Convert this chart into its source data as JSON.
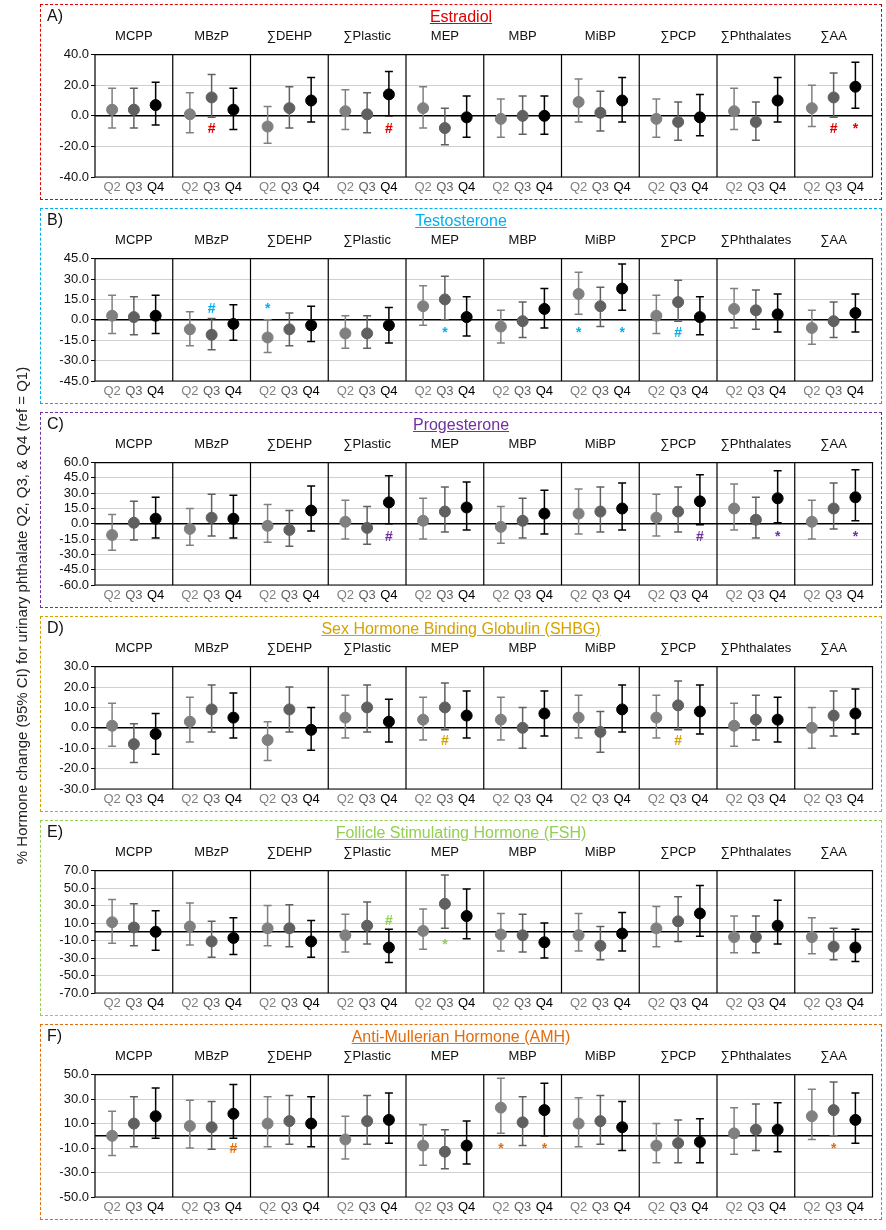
{
  "chart_data": [
    {
      "type": "other",
      "ylabel": "% Hormone change (95% CI) for urinary phthalate Q2, Q3, & Q4 (ref = Q1)"
    },
    {
      "type": "scatter",
      "title": "Estradiol",
      "annotations": [
        "A)"
      ],
      "color": "#e00000",
      "categories": [
        "MCPP",
        "MBzP",
        "∑DEHP",
        "∑Plastic",
        "MEP",
        "MBP",
        "MiBP",
        "∑PCP",
        "∑Phthalates",
        "∑AA"
      ],
      "ylim": [
        -40,
        40
      ],
      "yticks": [
        {
          "value": -40,
          "label": "-40.0"
        },
        {
          "value": -20,
          "label": "-20.0"
        },
        {
          "value": 0,
          "label": "0.0"
        },
        {
          "value": 20,
          "label": "20.0"
        },
        {
          "value": 40,
          "label": "40.0"
        }
      ],
      "grid": true,
      "marker": "circle",
      "legend": false,
      "ref_lines": [
        {
          "axis": "y",
          "value": 0,
          "color": "#000000"
        }
      ],
      "series": [
        {
          "name": "Q2",
          "color": "#808080",
          "values": [
            4,
            1,
            -7,
            3,
            5,
            -2,
            9,
            -2,
            3,
            5
          ],
          "errors": [
            [
              -8,
              18
            ],
            [
              -11,
              15
            ],
            [
              -18,
              6
            ],
            [
              -9,
              17
            ],
            [
              -8,
              19
            ],
            [
              -14,
              11
            ],
            [
              -4,
              24
            ],
            [
              -14,
              11
            ],
            [
              -9,
              18
            ],
            [
              -7,
              20
            ]
          ]
        },
        {
          "name": "Q3",
          "color": "#606060",
          "values": [
            4,
            12,
            5,
            1,
            -8,
            0,
            2,
            -4,
            -4,
            12
          ],
          "errors": [
            [
              -8,
              18
            ],
            [
              -1,
              27
            ],
            [
              -8,
              19
            ],
            [
              -11,
              15
            ],
            [
              -19,
              5
            ],
            [
              -12,
              13
            ],
            [
              -10,
              16
            ],
            [
              -16,
              9
            ],
            [
              -16,
              9
            ],
            [
              -1,
              28
            ]
          ],
          "value_labels": [
            null,
            "#",
            null,
            null,
            null,
            null,
            null,
            null,
            null,
            "#"
          ]
        },
        {
          "name": "Q4",
          "color": "#000000",
          "values": [
            7,
            4,
            10,
            14,
            -1,
            0,
            10,
            -1,
            10,
            19
          ],
          "errors": [
            [
              -6,
              22
            ],
            [
              -9,
              18
            ],
            [
              -4,
              25
            ],
            [
              0,
              29
            ],
            [
              -14,
              13
            ],
            [
              -12,
              13
            ],
            [
              -4,
              25
            ],
            [
              -13,
              14
            ],
            [
              -4,
              25
            ],
            [
              5,
              35
            ]
          ],
          "value_labels": [
            null,
            null,
            null,
            "#",
            null,
            null,
            null,
            null,
            null,
            "*"
          ]
        }
      ]
    },
    {
      "type": "scatter",
      "title": "Testosterone",
      "annotations": [
        "B)"
      ],
      "color": "#00b0f0",
      "categories": [
        "MCPP",
        "MBzP",
        "∑DEHP",
        "∑Plastic",
        "MEP",
        "MBP",
        "MiBP",
        "∑PCP",
        "∑Phthalates",
        "∑AA"
      ],
      "ylim": [
        -45,
        45
      ],
      "yticks": [
        {
          "value": -45,
          "label": "-45.0"
        },
        {
          "value": -30,
          "label": "-30.0"
        },
        {
          "value": -15,
          "label": "-15.0"
        },
        {
          "value": 0,
          "label": "0.0"
        },
        {
          "value": 15,
          "label": "15.0"
        },
        {
          "value": 30,
          "label": "30.0"
        },
        {
          "value": 45,
          "label": "45.0"
        }
      ],
      "grid": true,
      "marker": "circle",
      "legend": false,
      "ref_lines": [
        {
          "axis": "y",
          "value": 0,
          "color": "#000000"
        }
      ],
      "series": [
        {
          "name": "Q2",
          "color": "#808080",
          "values": [
            3,
            -7,
            -13,
            -10,
            10,
            -5,
            19,
            3,
            8,
            -6
          ],
          "errors": [
            [
              -10,
              18
            ],
            [
              -19,
              6
            ],
            [
              -24,
              0
            ],
            [
              -21,
              3
            ],
            [
              -4,
              25
            ],
            [
              -17,
              7
            ],
            [
              4,
              35
            ],
            [
              -10,
              18
            ],
            [
              -6,
              23
            ],
            [
              -18,
              7
            ]
          ],
          "value_labels": [
            null,
            null,
            "*",
            null,
            null,
            null,
            "*",
            null,
            null,
            null
          ]
        },
        {
          "name": "Q3",
          "color": "#606060",
          "values": [
            2,
            -11,
            -7,
            -10,
            15,
            -1,
            10,
            13,
            7,
            -1
          ],
          "errors": [
            [
              -11,
              17
            ],
            [
              -22,
              1
            ],
            [
              -19,
              5
            ],
            [
              -21,
              3
            ],
            [
              0,
              32
            ],
            [
              -13,
              13
            ],
            [
              -5,
              24
            ],
            [
              -1,
              29
            ],
            [
              -7,
              22
            ],
            [
              -13,
              13
            ]
          ],
          "value_labels": [
            null,
            "#",
            null,
            null,
            "*",
            null,
            null,
            "#",
            null,
            null
          ]
        },
        {
          "name": "Q4",
          "color": "#000000",
          "values": [
            3,
            -3,
            -4,
            -4,
            2,
            8,
            23,
            2,
            4,
            5
          ],
          "errors": [
            [
              -10,
              18
            ],
            [
              -15,
              11
            ],
            [
              -16,
              10
            ],
            [
              -17,
              9
            ],
            [
              -12,
              17
            ],
            [
              -6,
              23
            ],
            [
              7,
              41
            ],
            [
              -11,
              17
            ],
            [
              -9,
              19
            ],
            [
              -9,
              19
            ]
          ],
          "value_labels": [
            null,
            null,
            null,
            null,
            null,
            null,
            "*",
            null,
            null,
            null
          ]
        }
      ]
    },
    {
      "type": "scatter",
      "title": "Progesterone",
      "annotations": [
        "C)"
      ],
      "color": "#7030a0",
      "categories": [
        "MCPP",
        "MBzP",
        "∑DEHP",
        "∑Plastic",
        "MEP",
        "MBP",
        "MiBP",
        "∑PCP",
        "∑Phthalates",
        "∑AA"
      ],
      "ylim": [
        -60,
        60
      ],
      "yticks": [
        {
          "value": -60,
          "label": "-60.0"
        },
        {
          "value": -45,
          "label": "-45.0"
        },
        {
          "value": -30,
          "label": "-30.0"
        },
        {
          "value": -15,
          "label": "-15.0"
        },
        {
          "value": 0,
          "label": "0.0"
        },
        {
          "value": 15,
          "label": "15.0"
        },
        {
          "value": 30,
          "label": "30.0"
        },
        {
          "value": 45,
          "label": "45.0"
        },
        {
          "value": 60,
          "label": "60.0"
        }
      ],
      "grid": true,
      "marker": "circle",
      "legend": false,
      "ref_lines": [
        {
          "axis": "y",
          "value": 0,
          "color": "#000000"
        }
      ],
      "series": [
        {
          "name": "Q2",
          "color": "#808080",
          "values": [
            -11,
            -5,
            -2,
            2,
            3,
            -3,
            10,
            6,
            15,
            2
          ],
          "errors": [
            [
              -26,
              9
            ],
            [
              -21,
              15
            ],
            [
              -18,
              19
            ],
            [
              -15,
              23
            ],
            [
              -15,
              25
            ],
            [
              -19,
              17
            ],
            [
              -10,
              34
            ],
            [
              -12,
              29
            ],
            [
              -6,
              39
            ],
            [
              -15,
              23
            ]
          ]
        },
        {
          "name": "Q3",
          "color": "#606060",
          "values": [
            1,
            6,
            -6,
            -4,
            12,
            3,
            12,
            12,
            4,
            15
          ],
          "errors": [
            [
              -16,
              22
            ],
            [
              -12,
              29
            ],
            [
              -22,
              13
            ],
            [
              -20,
              17
            ],
            [
              -8,
              36
            ],
            [
              -14,
              25
            ],
            [
              -8,
              36
            ],
            [
              -8,
              36
            ],
            [
              -14,
              26
            ],
            [
              -5,
              40
            ]
          ]
        },
        {
          "name": "Q4",
          "color": "#000000",
          "values": [
            5,
            5,
            13,
            21,
            16,
            10,
            15,
            22,
            25,
            26
          ],
          "errors": [
            [
              -14,
              26
            ],
            [
              -14,
              28
            ],
            [
              -7,
              37
            ],
            [
              0,
              47
            ],
            [
              -6,
              41
            ],
            [
              -10,
              33
            ],
            [
              -6,
              40
            ],
            [
              -1,
              48
            ],
            [
              1,
              52
            ],
            [
              3,
              53
            ]
          ],
          "value_labels": [
            null,
            null,
            null,
            "#",
            null,
            null,
            null,
            "#",
            "*",
            "*"
          ]
        }
      ]
    },
    {
      "type": "scatter",
      "title": "Sex Hormone Binding Globulin (SHBG)",
      "annotations": [
        "D)"
      ],
      "color": "#d4a300",
      "categories": [
        "MCPP",
        "MBzP",
        "∑DEHP",
        "∑Plastic",
        "MEP",
        "MBP",
        "MiBP",
        "∑PCP",
        "∑Phthalates",
        "∑AA"
      ],
      "ylim": [
        -30,
        30
      ],
      "yticks": [
        {
          "value": -30,
          "label": "-30.0"
        },
        {
          "value": -20,
          "label": "-20.0"
        },
        {
          "value": -10,
          "label": "-10.0"
        },
        {
          "value": 0,
          "label": "0.0"
        },
        {
          "value": 10,
          "label": "10.0"
        },
        {
          "value": 20,
          "label": "20.0"
        },
        {
          "value": 30,
          "label": "30.0"
        }
      ],
      "grid": true,
      "marker": "circle",
      "legend": false,
      "ref_lines": [
        {
          "axis": "y",
          "value": 0,
          "color": "#000000"
        }
      ],
      "series": [
        {
          "name": "Q2",
          "color": "#808080",
          "values": [
            1,
            3,
            -6,
            5,
            4,
            4,
            5,
            5,
            1,
            0
          ],
          "errors": [
            [
              -9,
              12
            ],
            [
              -7,
              15
            ],
            [
              -16,
              3
            ],
            [
              -5,
              16
            ],
            [
              -6,
              15
            ],
            [
              -6,
              15
            ],
            [
              -5,
              16
            ],
            [
              -5,
              16
            ],
            [
              -9,
              12
            ],
            [
              -10,
              10
            ]
          ]
        },
        {
          "name": "Q3",
          "color": "#606060",
          "values": [
            -8,
            9,
            9,
            10,
            10,
            0,
            -2,
            11,
            4,
            6
          ],
          "errors": [
            [
              -17,
              2
            ],
            [
              -2,
              21
            ],
            [
              -2,
              20
            ],
            [
              -2,
              21
            ],
            [
              -1,
              22
            ],
            [
              -10,
              10
            ],
            [
              -12,
              8
            ],
            [
              -1,
              23
            ],
            [
              -6,
              16
            ],
            [
              -4,
              18
            ]
          ],
          "value_labels": [
            null,
            null,
            null,
            null,
            "#",
            null,
            null,
            "#",
            null,
            null
          ]
        },
        {
          "name": "Q4",
          "color": "#000000",
          "values": [
            -3,
            5,
            -1,
            3,
            6,
            7,
            9,
            8,
            4,
            7
          ],
          "errors": [
            [
              -13,
              7
            ],
            [
              -5,
              17
            ],
            [
              -11,
              10
            ],
            [
              -7,
              14
            ],
            [
              -5,
              18
            ],
            [
              -4,
              18
            ],
            [
              -2,
              21
            ],
            [
              -3,
              21
            ],
            [
              -7,
              15
            ],
            [
              -3,
              19
            ]
          ]
        }
      ]
    },
    {
      "type": "scatter",
      "title": "Follicle Stimulating Hormone (FSH)",
      "annotations": [
        "E)"
      ],
      "color": "#92d050",
      "categories": [
        "MCPP",
        "MBzP",
        "∑DEHP",
        "∑Plastic",
        "MEP",
        "MBP",
        "MiBP",
        "∑PCP",
        "∑Phthalates",
        "∑AA"
      ],
      "ylim": [
        -70,
        70
      ],
      "yticks": [
        {
          "value": -70,
          "label": "-70.0"
        },
        {
          "value": -50,
          "label": "-50.0"
        },
        {
          "value": -30,
          "label": "-30.0"
        },
        {
          "value": -10,
          "label": "-10.0"
        },
        {
          "value": 10,
          "label": "10.0"
        },
        {
          "value": 30,
          "label": "30.0"
        },
        {
          "value": 50,
          "label": "50.0"
        },
        {
          "value": 70,
          "label": "70.0"
        }
      ],
      "grid": true,
      "marker": "circle",
      "legend": false,
      "ref_lines": [
        {
          "axis": "y",
          "value": 0,
          "color": "#000000"
        }
      ],
      "series": [
        {
          "name": "Q2",
          "color": "#808080",
          "values": [
            11,
            6,
            4,
            -4,
            1,
            -3,
            -4,
            4,
            -6,
            -6
          ],
          "errors": [
            [
              -13,
              37
            ],
            [
              -15,
              33
            ],
            [
              -16,
              30
            ],
            [
              -23,
              20
            ],
            [
              -20,
              26
            ],
            [
              -22,
              21
            ],
            [
              -22,
              21
            ],
            [
              -17,
              29
            ],
            [
              -24,
              18
            ],
            [
              -25,
              16
            ]
          ]
        },
        {
          "name": "Q3",
          "color": "#606060",
          "values": [
            5,
            -11,
            4,
            7,
            32,
            -4,
            -16,
            12,
            -6,
            -17
          ],
          "errors": [
            [
              -16,
              32
            ],
            [
              -29,
              12
            ],
            [
              -17,
              31
            ],
            [
              -14,
              34
            ],
            [
              4,
              65
            ],
            [
              -23,
              20
            ],
            [
              -32,
              6
            ],
            [
              -11,
              40
            ],
            [
              -24,
              18
            ],
            [
              -32,
              4
            ]
          ],
          "value_labels": [
            null,
            null,
            null,
            null,
            "*",
            null,
            null,
            null,
            null,
            null
          ]
        },
        {
          "name": "Q4",
          "color": "#000000",
          "values": [
            0,
            -7,
            -11,
            -18,
            18,
            -12,
            -2,
            21,
            7,
            -18
          ],
          "errors": [
            [
              -21,
              24
            ],
            [
              -26,
              16
            ],
            [
              -29,
              13
            ],
            [
              -35,
              3
            ],
            [
              -8,
              49
            ],
            [
              -30,
              10
            ],
            [
              -22,
              22
            ],
            [
              -5,
              53
            ],
            [
              -14,
              36
            ],
            [
              -34,
              3
            ]
          ],
          "value_labels": [
            null,
            null,
            null,
            "#",
            null,
            null,
            null,
            null,
            null,
            null
          ]
        }
      ]
    },
    {
      "type": "scatter",
      "title": "Anti-Mullerian Hormone (AMH)",
      "annotations": [
        "F)"
      ],
      "color": "#e36c0a",
      "categories": [
        "MCPP",
        "MBzP",
        "∑DEHP",
        "∑Plastic",
        "MEP",
        "MBP",
        "MiBP",
        "∑PCP",
        "∑Phthalates",
        "∑AA"
      ],
      "ylim": [
        -50,
        50
      ],
      "yticks": [
        {
          "value": -50,
          "label": "-50.0"
        },
        {
          "value": -30,
          "label": "-30.0"
        },
        {
          "value": -10,
          "label": "-10.0"
        },
        {
          "value": 10,
          "label": "10.0"
        },
        {
          "value": 30,
          "label": "30.0"
        },
        {
          "value": 50,
          "label": "50.0"
        }
      ],
      "grid": true,
      "marker": "circle",
      "legend": false,
      "ref_lines": [
        {
          "axis": "y",
          "value": 0,
          "color": "#000000"
        }
      ],
      "series": [
        {
          "name": "Q2",
          "color": "#808080",
          "values": [
            0,
            8,
            10,
            -3,
            -8,
            23,
            10,
            -8,
            2,
            16
          ],
          "errors": [
            [
              -16,
              20
            ],
            [
              -10,
              29
            ],
            [
              -9,
              32
            ],
            [
              -19,
              16
            ],
            [
              -24,
              9
            ],
            [
              2,
              47
            ],
            [
              -9,
              31
            ],
            [
              -22,
              10
            ],
            [
              -15,
              23
            ],
            [
              -3,
              38
            ]
          ],
          "value_labels": [
            null,
            null,
            null,
            null,
            null,
            "*",
            null,
            null,
            null,
            null
          ]
        },
        {
          "name": "Q3",
          "color": "#606060",
          "values": [
            10,
            7,
            12,
            12,
            -13,
            11,
            12,
            -6,
            5,
            21
          ],
          "errors": [
            [
              -9,
              32
            ],
            [
              -11,
              28
            ],
            [
              -7,
              33
            ],
            [
              -7,
              33
            ],
            [
              -27,
              5
            ],
            [
              -8,
              32
            ],
            [
              -7,
              33
            ],
            [
              -22,
              13
            ],
            [
              -12,
              26
            ],
            [
              0,
              44
            ]
          ],
          "value_labels": [
            null,
            null,
            null,
            null,
            null,
            null,
            null,
            null,
            null,
            "*"
          ]
        },
        {
          "name": "Q4",
          "color": "#000000",
          "values": [
            16,
            18,
            10,
            13,
            -8,
            21,
            7,
            -5,
            5,
            13
          ],
          "errors": [
            [
              -2,
              39
            ],
            [
              -2,
              42
            ],
            [
              -9,
              32
            ],
            [
              -6,
              35
            ],
            [
              -23,
              12
            ],
            [
              0,
              43
            ],
            [
              -12,
              28
            ],
            [
              -22,
              14
            ],
            [
              -13,
              27
            ],
            [
              -6,
              35
            ]
          ],
          "value_labels": [
            null,
            "#",
            null,
            null,
            null,
            "*",
            null,
            null,
            null,
            null
          ]
        }
      ]
    }
  ]
}
